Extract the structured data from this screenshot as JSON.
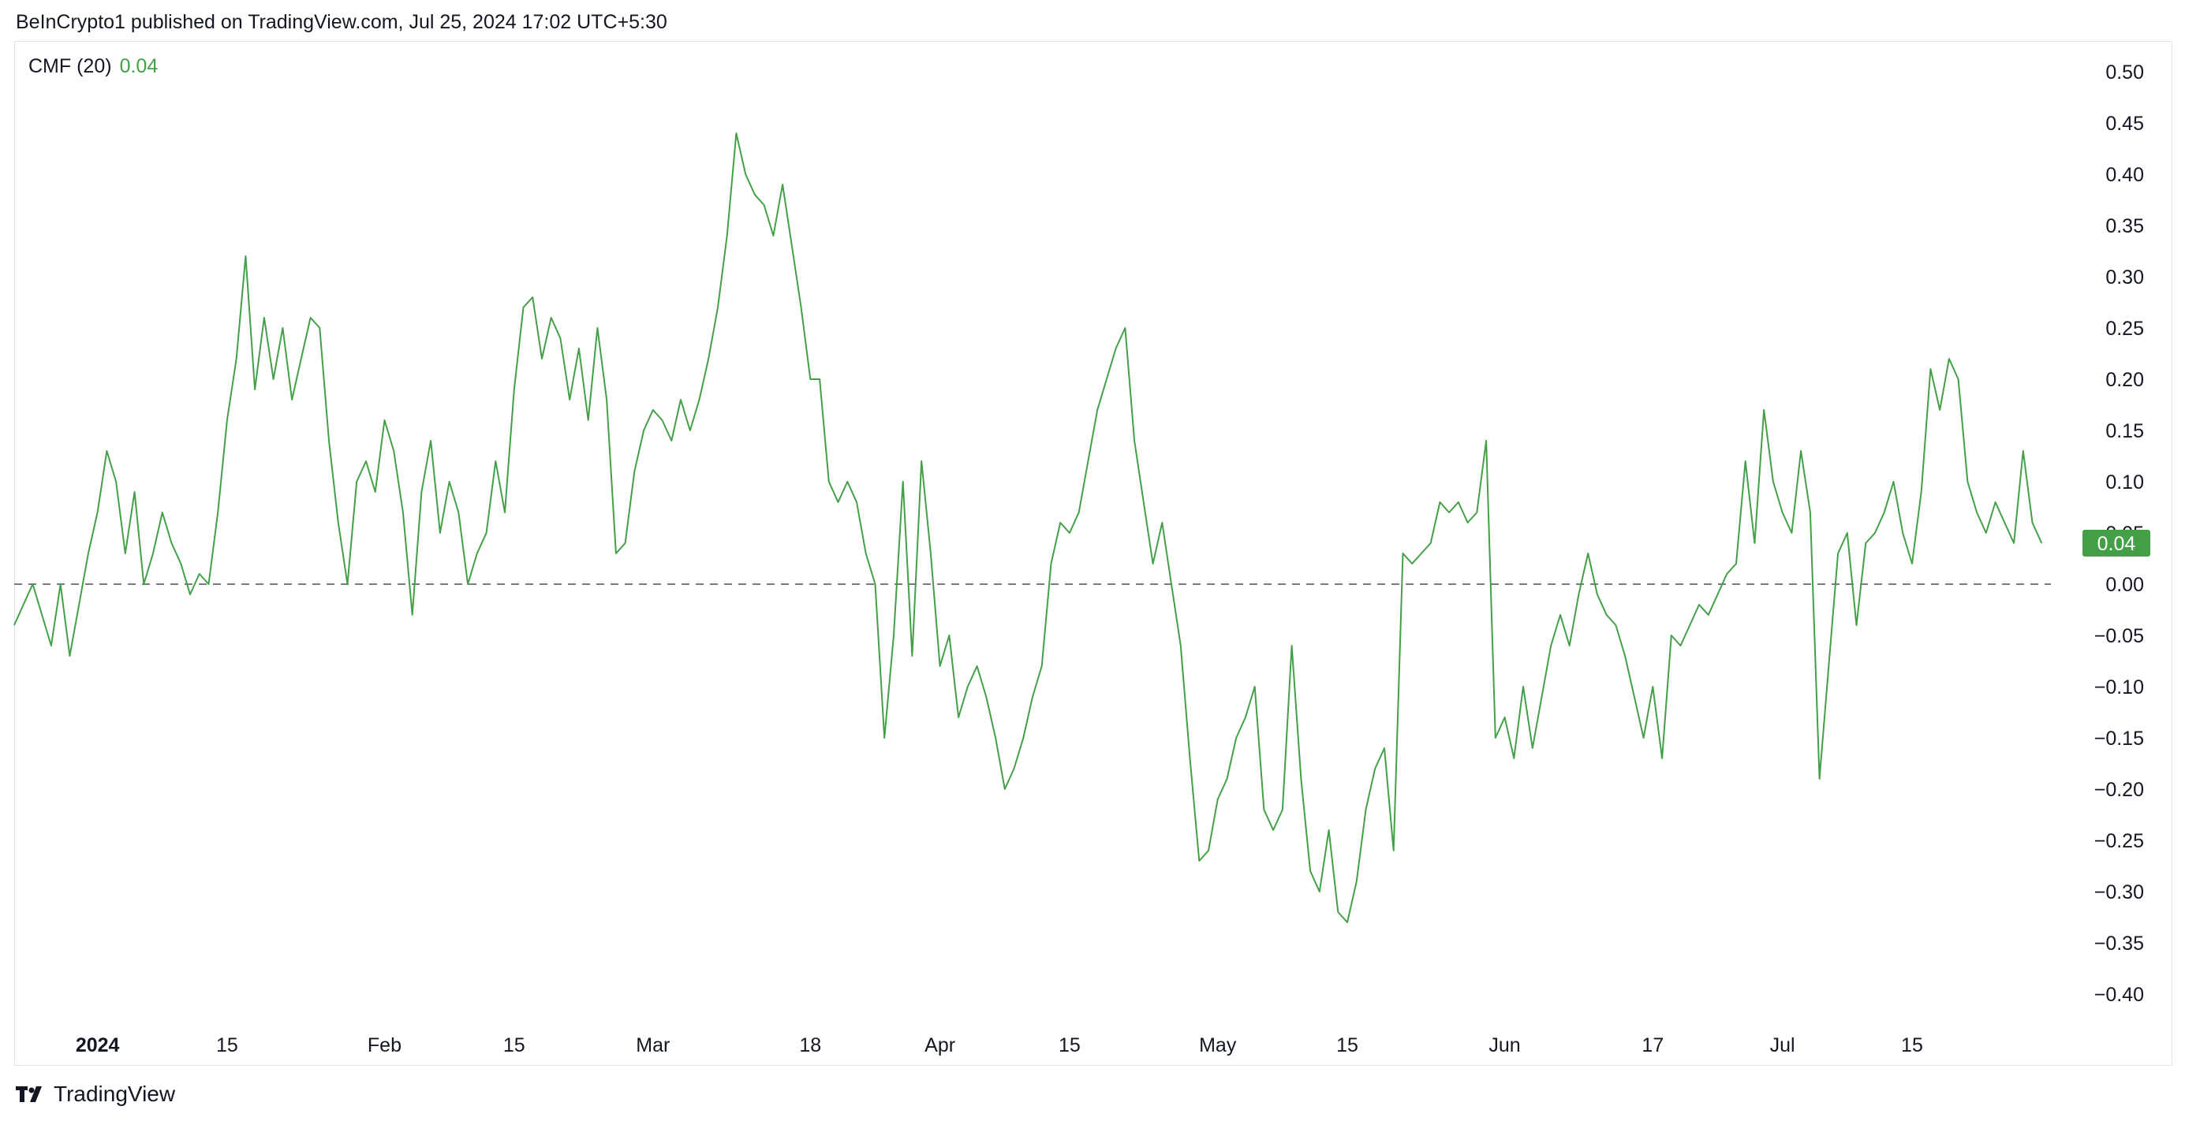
{
  "header": {
    "attribution": "BeInCrypto1 published on TradingView.com, Jul 25, 2024 17:02 UTC+5:30"
  },
  "legend": {
    "indicator": "CMF (20)",
    "value": "0.04"
  },
  "footer": {
    "brand": "TradingView",
    "logo_icon": "tradingview-logo-icon"
  },
  "colors": {
    "line": "#43a047",
    "badge": "#43a047",
    "zero_line": "#787b86",
    "axis_text": "#131722"
  },
  "chart_data": {
    "type": "line",
    "title": "",
    "xlabel": "",
    "ylabel": "",
    "ylim": [
      -0.43,
      0.53
    ],
    "y_ticks": [
      0.5,
      0.45,
      0.4,
      0.35,
      0.3,
      0.25,
      0.2,
      0.15,
      0.1,
      0.05,
      0.0,
      -0.05,
      -0.1,
      -0.15,
      -0.2,
      -0.25,
      -0.3,
      -0.35,
      -0.4
    ],
    "y_tick_labels": [
      "0.50",
      "0.45",
      "0.40",
      "0.35",
      "0.30",
      "0.25",
      "0.20",
      "0.15",
      "0.10",
      "0.05",
      "0.00",
      "−0.05",
      "−0.10",
      "−0.15",
      "−0.20",
      "−0.25",
      "−0.30",
      "−0.35",
      "−0.40"
    ],
    "x_range": [
      "2023-12-23",
      "2024-07-30"
    ],
    "x_ticks": [
      {
        "date": "2024-01-01",
        "label": "2024",
        "bold": true
      },
      {
        "date": "2024-01-15",
        "label": "15",
        "bold": false
      },
      {
        "date": "2024-02-01",
        "label": "Feb",
        "bold": false
      },
      {
        "date": "2024-02-15",
        "label": "15",
        "bold": false
      },
      {
        "date": "2024-03-01",
        "label": "Mar",
        "bold": false
      },
      {
        "date": "2024-03-18",
        "label": "18",
        "bold": false
      },
      {
        "date": "2024-04-01",
        "label": "Apr",
        "bold": false
      },
      {
        "date": "2024-04-15",
        "label": "15",
        "bold": false
      },
      {
        "date": "2024-05-01",
        "label": "May",
        "bold": false
      },
      {
        "date": "2024-05-15",
        "label": "15",
        "bold": false
      },
      {
        "date": "2024-06-01",
        "label": "Jun",
        "bold": false
      },
      {
        "date": "2024-06-17",
        "label": "17",
        "bold": false
      },
      {
        "date": "2024-07-01",
        "label": "Jul",
        "bold": false
      },
      {
        "date": "2024-07-15",
        "label": "15",
        "bold": false
      }
    ],
    "reference_line": {
      "y": 0.0,
      "style": "dashed"
    },
    "last_value_badge": "0.04",
    "grid": false,
    "series": [
      {
        "points": [
          [
            "2023-12-23",
            -0.04
          ],
          [
            "2023-12-24",
            -0.02
          ],
          [
            "2023-12-25",
            0.0
          ],
          [
            "2023-12-26",
            -0.03
          ],
          [
            "2023-12-27",
            -0.06
          ],
          [
            "2023-12-28",
            0.0
          ],
          [
            "2023-12-29",
            -0.07
          ],
          [
            "2023-12-30",
            -0.02
          ],
          [
            "2023-12-31",
            0.03
          ],
          [
            "2024-01-01",
            0.07
          ],
          [
            "2024-01-02",
            0.13
          ],
          [
            "2024-01-03",
            0.1
          ],
          [
            "2024-01-04",
            0.03
          ],
          [
            "2024-01-05",
            0.09
          ],
          [
            "2024-01-06",
            0.0
          ],
          [
            "2024-01-07",
            0.03
          ],
          [
            "2024-01-08",
            0.07
          ],
          [
            "2024-01-09",
            0.04
          ],
          [
            "2024-01-10",
            0.02
          ],
          [
            "2024-01-11",
            -0.01
          ],
          [
            "2024-01-12",
            0.01
          ],
          [
            "2024-01-13",
            0.0
          ],
          [
            "2024-01-14",
            0.07
          ],
          [
            "2024-01-15",
            0.16
          ],
          [
            "2024-01-16",
            0.22
          ],
          [
            "2024-01-17",
            0.32
          ],
          [
            "2024-01-18",
            0.19
          ],
          [
            "2024-01-19",
            0.26
          ],
          [
            "2024-01-20",
            0.2
          ],
          [
            "2024-01-21",
            0.25
          ],
          [
            "2024-01-22",
            0.18
          ],
          [
            "2024-01-23",
            0.22
          ],
          [
            "2024-01-24",
            0.26
          ],
          [
            "2024-01-25",
            0.25
          ],
          [
            "2024-01-26",
            0.14
          ],
          [
            "2024-01-27",
            0.06
          ],
          [
            "2024-01-28",
            0.0
          ],
          [
            "2024-01-29",
            0.1
          ],
          [
            "2024-01-30",
            0.12
          ],
          [
            "2024-01-31",
            0.09
          ],
          [
            "2024-02-01",
            0.16
          ],
          [
            "2024-02-02",
            0.13
          ],
          [
            "2024-02-03",
            0.07
          ],
          [
            "2024-02-04",
            -0.03
          ],
          [
            "2024-02-05",
            0.09
          ],
          [
            "2024-02-06",
            0.14
          ],
          [
            "2024-02-07",
            0.05
          ],
          [
            "2024-02-08",
            0.1
          ],
          [
            "2024-02-09",
            0.07
          ],
          [
            "2024-02-10",
            0.0
          ],
          [
            "2024-02-11",
            0.03
          ],
          [
            "2024-02-12",
            0.05
          ],
          [
            "2024-02-13",
            0.12
          ],
          [
            "2024-02-14",
            0.07
          ],
          [
            "2024-02-15",
            0.19
          ],
          [
            "2024-02-16",
            0.27
          ],
          [
            "2024-02-17",
            0.28
          ],
          [
            "2024-02-18",
            0.22
          ],
          [
            "2024-02-19",
            0.26
          ],
          [
            "2024-02-20",
            0.24
          ],
          [
            "2024-02-21",
            0.18
          ],
          [
            "2024-02-22",
            0.23
          ],
          [
            "2024-02-23",
            0.16
          ],
          [
            "2024-02-24",
            0.25
          ],
          [
            "2024-02-25",
            0.18
          ],
          [
            "2024-02-26",
            0.03
          ],
          [
            "2024-02-27",
            0.04
          ],
          [
            "2024-02-28",
            0.11
          ],
          [
            "2024-02-29",
            0.15
          ],
          [
            "2024-03-01",
            0.17
          ],
          [
            "2024-03-02",
            0.16
          ],
          [
            "2024-03-03",
            0.14
          ],
          [
            "2024-03-04",
            0.18
          ],
          [
            "2024-03-05",
            0.15
          ],
          [
            "2024-03-06",
            0.18
          ],
          [
            "2024-03-07",
            0.22
          ],
          [
            "2024-03-08",
            0.27
          ],
          [
            "2024-03-09",
            0.34
          ],
          [
            "2024-03-10",
            0.44
          ],
          [
            "2024-03-11",
            0.4
          ],
          [
            "2024-03-12",
            0.38
          ],
          [
            "2024-03-13",
            0.37
          ],
          [
            "2024-03-14",
            0.34
          ],
          [
            "2024-03-15",
            0.39
          ],
          [
            "2024-03-16",
            0.33
          ],
          [
            "2024-03-17",
            0.27
          ],
          [
            "2024-03-18",
            0.2
          ],
          [
            "2024-03-19",
            0.2
          ],
          [
            "2024-03-20",
            0.1
          ],
          [
            "2024-03-21",
            0.08
          ],
          [
            "2024-03-22",
            0.1
          ],
          [
            "2024-03-23",
            0.08
          ],
          [
            "2024-03-24",
            0.03
          ],
          [
            "2024-03-25",
            0.0
          ],
          [
            "2024-03-26",
            -0.15
          ],
          [
            "2024-03-27",
            -0.05
          ],
          [
            "2024-03-28",
            0.1
          ],
          [
            "2024-03-29",
            -0.07
          ],
          [
            "2024-03-30",
            0.12
          ],
          [
            "2024-03-31",
            0.03
          ],
          [
            "2024-04-01",
            -0.08
          ],
          [
            "2024-04-02",
            -0.05
          ],
          [
            "2024-04-03",
            -0.13
          ],
          [
            "2024-04-04",
            -0.1
          ],
          [
            "2024-04-05",
            -0.08
          ],
          [
            "2024-04-06",
            -0.11
          ],
          [
            "2024-04-07",
            -0.15
          ],
          [
            "2024-04-08",
            -0.2
          ],
          [
            "2024-04-09",
            -0.18
          ],
          [
            "2024-04-10",
            -0.15
          ],
          [
            "2024-04-11",
            -0.11
          ],
          [
            "2024-04-12",
            -0.08
          ],
          [
            "2024-04-13",
            0.02
          ],
          [
            "2024-04-14",
            0.06
          ],
          [
            "2024-04-15",
            0.05
          ],
          [
            "2024-04-16",
            0.07
          ],
          [
            "2024-04-17",
            0.12
          ],
          [
            "2024-04-18",
            0.17
          ],
          [
            "2024-04-19",
            0.2
          ],
          [
            "2024-04-20",
            0.23
          ],
          [
            "2024-04-21",
            0.25
          ],
          [
            "2024-04-22",
            0.14
          ],
          [
            "2024-04-23",
            0.08
          ],
          [
            "2024-04-24",
            0.02
          ],
          [
            "2024-04-25",
            0.06
          ],
          [
            "2024-04-26",
            0.0
          ],
          [
            "2024-04-27",
            -0.06
          ],
          [
            "2024-04-28",
            -0.17
          ],
          [
            "2024-04-29",
            -0.27
          ],
          [
            "2024-04-30",
            -0.26
          ],
          [
            "2024-05-01",
            -0.21
          ],
          [
            "2024-05-02",
            -0.19
          ],
          [
            "2024-05-03",
            -0.15
          ],
          [
            "2024-05-04",
            -0.13
          ],
          [
            "2024-05-05",
            -0.1
          ],
          [
            "2024-05-06",
            -0.22
          ],
          [
            "2024-05-07",
            -0.24
          ],
          [
            "2024-05-08",
            -0.22
          ],
          [
            "2024-05-09",
            -0.06
          ],
          [
            "2024-05-10",
            -0.19
          ],
          [
            "2024-05-11",
            -0.28
          ],
          [
            "2024-05-12",
            -0.3
          ],
          [
            "2024-05-13",
            -0.24
          ],
          [
            "2024-05-14",
            -0.32
          ],
          [
            "2024-05-15",
            -0.33
          ],
          [
            "2024-05-16",
            -0.29
          ],
          [
            "2024-05-17",
            -0.22
          ],
          [
            "2024-05-18",
            -0.18
          ],
          [
            "2024-05-19",
            -0.16
          ],
          [
            "2024-05-20",
            -0.26
          ],
          [
            "2024-05-21",
            0.03
          ],
          [
            "2024-05-22",
            0.02
          ],
          [
            "2024-05-23",
            0.03
          ],
          [
            "2024-05-24",
            0.04
          ],
          [
            "2024-05-25",
            0.08
          ],
          [
            "2024-05-26",
            0.07
          ],
          [
            "2024-05-27",
            0.08
          ],
          [
            "2024-05-28",
            0.06
          ],
          [
            "2024-05-29",
            0.07
          ],
          [
            "2024-05-30",
            0.14
          ],
          [
            "2024-05-31",
            -0.15
          ],
          [
            "2024-06-01",
            -0.13
          ],
          [
            "2024-06-02",
            -0.17
          ],
          [
            "2024-06-03",
            -0.1
          ],
          [
            "2024-06-04",
            -0.16
          ],
          [
            "2024-06-05",
            -0.11
          ],
          [
            "2024-06-06",
            -0.06
          ],
          [
            "2024-06-07",
            -0.03
          ],
          [
            "2024-06-08",
            -0.06
          ],
          [
            "2024-06-09",
            -0.01
          ],
          [
            "2024-06-10",
            0.03
          ],
          [
            "2024-06-11",
            -0.01
          ],
          [
            "2024-06-12",
            -0.03
          ],
          [
            "2024-06-13",
            -0.04
          ],
          [
            "2024-06-14",
            -0.07
          ],
          [
            "2024-06-15",
            -0.11
          ],
          [
            "2024-06-16",
            -0.15
          ],
          [
            "2024-06-17",
            -0.1
          ],
          [
            "2024-06-18",
            -0.17
          ],
          [
            "2024-06-19",
            -0.05
          ],
          [
            "2024-06-20",
            -0.06
          ],
          [
            "2024-06-21",
            -0.04
          ],
          [
            "2024-06-22",
            -0.02
          ],
          [
            "2024-06-23",
            -0.03
          ],
          [
            "2024-06-24",
            -0.01
          ],
          [
            "2024-06-25",
            0.01
          ],
          [
            "2024-06-26",
            0.02
          ],
          [
            "2024-06-27",
            0.12
          ],
          [
            "2024-06-28",
            0.04
          ],
          [
            "2024-06-29",
            0.17
          ],
          [
            "2024-06-30",
            0.1
          ],
          [
            "2024-07-01",
            0.07
          ],
          [
            "2024-07-02",
            0.05
          ],
          [
            "2024-07-03",
            0.13
          ],
          [
            "2024-07-04",
            0.07
          ],
          [
            "2024-07-05",
            -0.19
          ],
          [
            "2024-07-06",
            -0.08
          ],
          [
            "2024-07-07",
            0.03
          ],
          [
            "2024-07-08",
            0.05
          ],
          [
            "2024-07-09",
            -0.04
          ],
          [
            "2024-07-10",
            0.04
          ],
          [
            "2024-07-11",
            0.05
          ],
          [
            "2024-07-12",
            0.07
          ],
          [
            "2024-07-13",
            0.1
          ],
          [
            "2024-07-14",
            0.05
          ],
          [
            "2024-07-15",
            0.02
          ],
          [
            "2024-07-16",
            0.09
          ],
          [
            "2024-07-17",
            0.21
          ],
          [
            "2024-07-18",
            0.17
          ],
          [
            "2024-07-19",
            0.22
          ],
          [
            "2024-07-20",
            0.2
          ],
          [
            "2024-07-21",
            0.1
          ],
          [
            "2024-07-22",
            0.07
          ],
          [
            "2024-07-23",
            0.05
          ],
          [
            "2024-07-24",
            0.08
          ],
          [
            "2024-07-25",
            0.06
          ],
          [
            "2024-07-26",
            0.04
          ],
          [
            "2024-07-27",
            0.13
          ],
          [
            "2024-07-28",
            0.06
          ],
          [
            "2024-07-29",
            0.04
          ]
        ]
      }
    ]
  }
}
